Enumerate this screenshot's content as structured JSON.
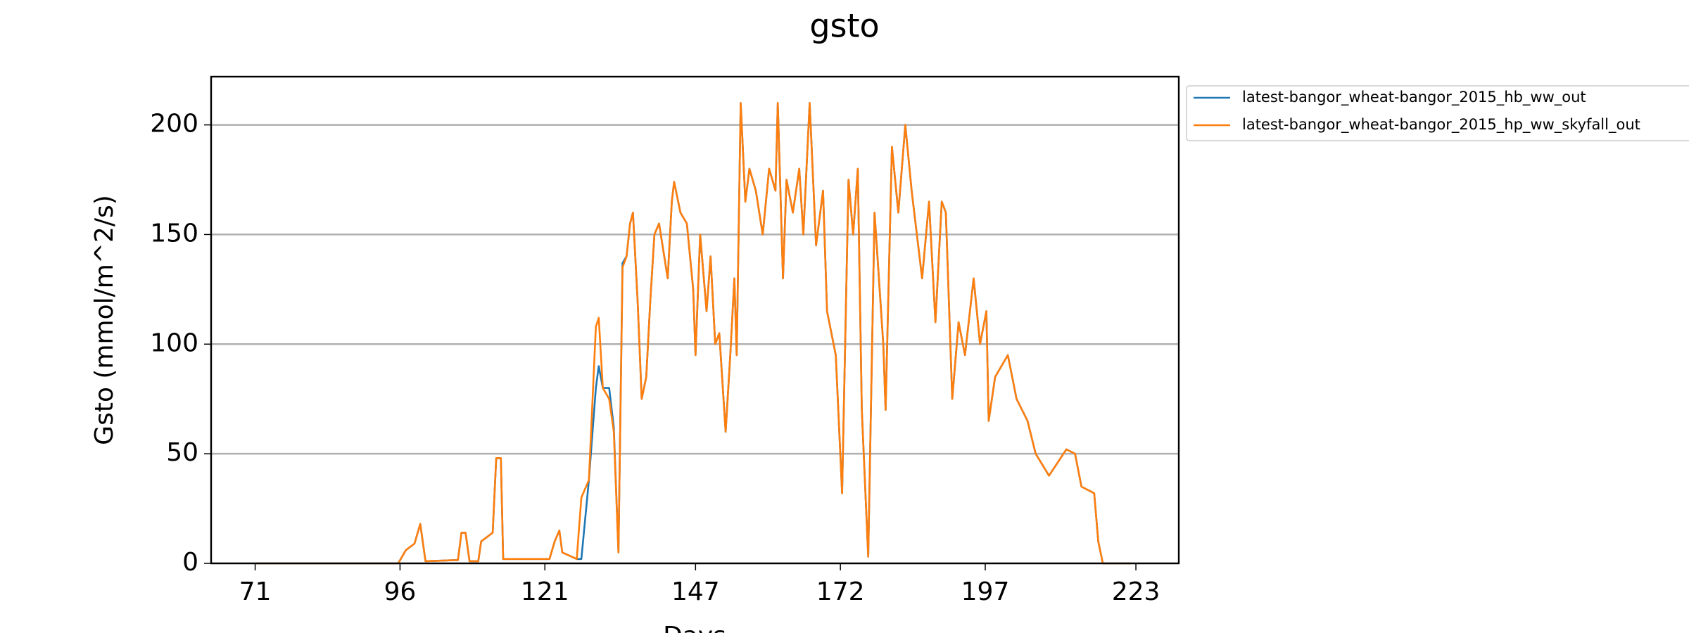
{
  "chart_data": {
    "type": "line",
    "title": "gsto",
    "xlabel": "Days",
    "ylabel": "Gsto (mmol/m^2/s)",
    "x": [
      71,
      95.7,
      97,
      98.5,
      99.5,
      100.4,
      106,
      106.6,
      107.3,
      108,
      109.5,
      110,
      112,
      112.6,
      113.4,
      113.8,
      121.8,
      122.7,
      123.5,
      124,
      126.5,
      127.3,
      128.6,
      129.8,
      130.3,
      131,
      132.1,
      132.9,
      133.7,
      134.4,
      135.1,
      135.7,
      136.2,
      137,
      137.7,
      138.5,
      139.2,
      139.9,
      140.7,
      142.2,
      142.9,
      143.3,
      144.4,
      145.5,
      146.6,
      147,
      147.8,
      148.9,
      149.6,
      150.4,
      151.1,
      152.2,
      153,
      153.7,
      154.1,
      154.8,
      155.6,
      156.3,
      157.4,
      158.6,
      159.7,
      160.8,
      161.2,
      162.1,
      162.7,
      163.8,
      164.9,
      165.6,
      166.7,
      167.8,
      169,
      169.7,
      171.2,
      172.3,
      173.4,
      174.2,
      175,
      175.7,
      176.8,
      177.9,
      179.4,
      179.8,
      180.9,
      182,
      183.2,
      184.3,
      186.1,
      187.3,
      188.4,
      189.5,
      190.2,
      191.3,
      192.4,
      193.5,
      195,
      196.1,
      197.2,
      197.6,
      198.7,
      200.9,
      202.4,
      204.3,
      205.7,
      208,
      211,
      212.5,
      213.6,
      215.8,
      216.5,
      217.3,
      222.1
    ],
    "series": [
      {
        "name": "latest-bangor_wheat-bangor_2015_hb_ww_out",
        "color": "#1f77b4",
        "values": [
          0,
          0,
          6,
          9,
          18,
          1,
          1.5,
          14,
          14,
          1,
          1,
          10,
          14,
          48,
          48,
          2,
          2,
          10,
          15,
          5,
          2,
          2,
          38,
          80,
          90,
          80,
          80,
          62,
          5,
          137,
          140,
          155,
          160,
          120,
          75,
          85,
          120,
          150,
          155,
          130,
          165,
          174,
          160,
          155,
          125,
          95,
          150,
          115,
          140,
          100,
          105,
          60,
          95,
          130,
          95,
          210,
          165,
          180,
          170,
          150,
          180,
          170,
          210,
          130,
          175,
          160,
          180,
          150,
          210,
          145,
          170,
          115,
          95,
          32,
          175,
          150,
          180,
          70,
          3,
          160,
          100,
          70,
          190,
          160,
          200,
          170,
          130,
          165,
          110,
          165,
          160,
          75,
          110,
          95,
          130,
          100,
          115,
          65,
          85,
          95,
          75,
          65,
          50,
          40,
          52,
          50,
          35,
          32,
          10,
          0,
          0
        ]
      },
      {
        "name": "latest-bangor_wheat-bangor_2015_hp_ww_skyfall_out",
        "color": "#ff7f0e",
        "values": [
          0,
          0,
          6,
          9,
          18,
          1,
          1.5,
          14,
          14,
          1,
          1,
          10,
          14,
          48,
          48,
          2,
          2,
          10,
          15,
          5,
          2,
          30,
          38,
          108,
          112,
          80,
          75,
          60,
          5,
          135,
          140,
          155,
          160,
          120,
          75,
          85,
          120,
          150,
          155,
          130,
          165,
          174,
          160,
          155,
          125,
          95,
          150,
          115,
          140,
          100,
          105,
          60,
          95,
          130,
          95,
          210,
          165,
          180,
          170,
          150,
          180,
          170,
          210,
          130,
          175,
          160,
          180,
          150,
          210,
          145,
          170,
          115,
          95,
          32,
          175,
          150,
          180,
          70,
          3,
          160,
          100,
          70,
          190,
          160,
          200,
          170,
          130,
          165,
          110,
          165,
          160,
          75,
          110,
          95,
          130,
          100,
          115,
          65,
          85,
          95,
          75,
          65,
          50,
          40,
          52,
          50,
          35,
          32,
          10,
          0,
          0
        ]
      }
    ],
    "xlim": [
      63.4,
      230.4
    ],
    "ylim": [
      0,
      222
    ],
    "xticks": [
      71,
      96,
      121,
      147,
      172,
      197,
      223
    ],
    "yticks": [
      0,
      50,
      100,
      150,
      200
    ],
    "ygrid": true
  }
}
